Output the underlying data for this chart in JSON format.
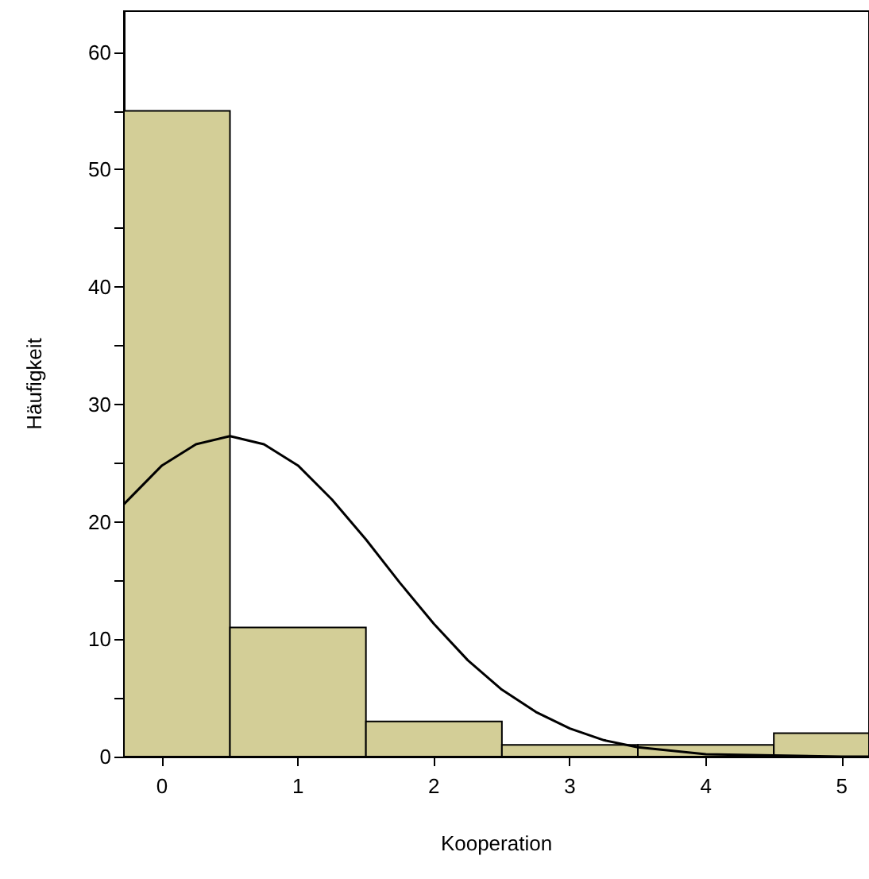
{
  "chart_data": {
    "type": "histogram",
    "xlabel": "Kooperation",
    "ylabel": "Häufigkeit",
    "bins": [
      -0.28,
      0.5,
      1.5,
      2.5,
      3.5,
      4.5,
      5.2
    ],
    "values": [
      55,
      11,
      3,
      1,
      1,
      2
    ],
    "color": "#d3ce97",
    "xlim": [
      -0.28,
      5.2
    ],
    "xticks": [
      0,
      1,
      2,
      3,
      4,
      5
    ],
    "ylim": [
      0,
      63.5
    ],
    "yticks": [
      0,
      {
        "value": 5,
        "label": null
      },
      10,
      {
        "value": 15,
        "label": null
      },
      20,
      {
        "value": 25,
        "label": null
      },
      30,
      {
        "value": 35,
        "label": null
      },
      40,
      {
        "value": 45,
        "label": null
      },
      50,
      {
        "value": 55,
        "label": null
      },
      60
    ],
    "grid": false,
    "series": [
      {
        "type": "line",
        "color": "#000000",
        "x": [
          -0.28,
          0,
          0.25,
          0.5,
          0.75,
          1,
          1.25,
          1.5,
          1.75,
          2,
          2.25,
          2.5,
          2.75,
          3,
          3.25,
          3.5,
          4,
          4.5,
          5,
          5.2
        ],
        "values": [
          21.5,
          24.8,
          26.6,
          27.3,
          26.6,
          24.8,
          21.9,
          18.5,
          14.8,
          11.3,
          8.2,
          5.7,
          3.8,
          2.4,
          1.4,
          0.8,
          0.2,
          0.1,
          0,
          0
        ]
      }
    ]
  }
}
